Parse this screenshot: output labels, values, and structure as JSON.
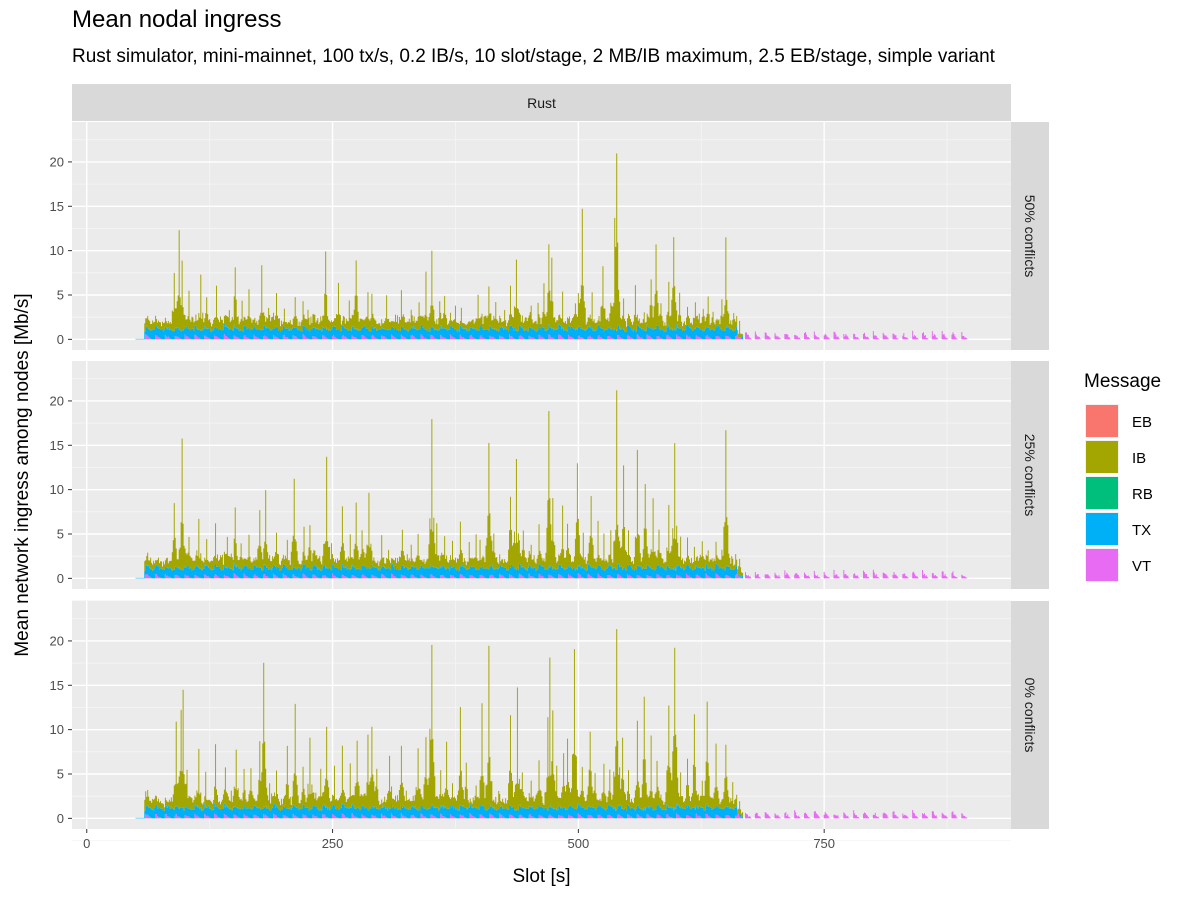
{
  "title": "Mean nodal ingress",
  "subtitle": "Rust simulator, mini-mainnet, 100 tx/s, 0.2 IB/s, 10 slot/stage, 2 MB/IB maximum, 2.5 EB/stage, simple variant",
  "chart_data": {
    "type": "area",
    "title": "Mean nodal ingress",
    "xlabel": "Slot [s]",
    "ylabel": "Mean network ingress among nodes [Mb/s]",
    "xlim": [
      -15,
      940
    ],
    "ylim": [
      -1.2,
      24.5
    ],
    "xticks": [
      0,
      250,
      500,
      750
    ],
    "yticks": [
      0,
      5,
      10,
      15,
      20
    ],
    "column_facet": "Rust",
    "row_facets": [
      "50% conflicts",
      "25% conflicts",
      "0% conflicts"
    ],
    "legend": {
      "title": "Message",
      "entries": [
        {
          "name": "EB",
          "color": "#F8766D"
        },
        {
          "name": "IB",
          "color": "#A3A500"
        },
        {
          "name": "RB",
          "color": "#00BF7D"
        },
        {
          "name": "TX",
          "color": "#00B0F6"
        },
        {
          "name": "VT",
          "color": "#E76BF3"
        }
      ]
    },
    "layer_order_bottom_to_top": [
      "VT",
      "TX",
      "RB",
      "IB",
      "EB"
    ],
    "panels": [
      {
        "label": "50% conflicts",
        "tx_level": 1.0,
        "ib_base": 1.7,
        "ib_peaks": [
          [
            89,
            7.5
          ],
          [
            94,
            12.2
          ],
          [
            97,
            8.8
          ],
          [
            104,
            5.3
          ],
          [
            116,
            7.3
          ],
          [
            122,
            4.5
          ],
          [
            132,
            5.8
          ],
          [
            145,
            3.2
          ],
          [
            151,
            7.8
          ],
          [
            158,
            4.3
          ],
          [
            165,
            5.3
          ],
          [
            178,
            8.2
          ],
          [
            185,
            3.3
          ],
          [
            193,
            4.8
          ],
          [
            201,
            3.0
          ],
          [
            212,
            4.4
          ],
          [
            220,
            3.7
          ],
          [
            225,
            3.3
          ],
          [
            243,
            9.5
          ],
          [
            256,
            6.2
          ],
          [
            267,
            4.2
          ],
          [
            274,
            8.8
          ],
          [
            286,
            5.1
          ],
          [
            290,
            4.6
          ],
          [
            305,
            4.8
          ],
          [
            320,
            5.0
          ],
          [
            330,
            3.0
          ],
          [
            338,
            4.0
          ],
          [
            345,
            7.5
          ],
          [
            351,
            9.5
          ],
          [
            359,
            4.1
          ],
          [
            364,
            4.6
          ],
          [
            375,
            3.6
          ],
          [
            381,
            3.1
          ],
          [
            398,
            5.0
          ],
          [
            409,
            6.0
          ],
          [
            416,
            4.0
          ],
          [
            425,
            3.0
          ],
          [
            431,
            5.5
          ],
          [
            437,
            9.0
          ],
          [
            452,
            3.5
          ],
          [
            459,
            4.0
          ],
          [
            465,
            6.0
          ],
          [
            470,
            10.0
          ],
          [
            473,
            9.0
          ],
          [
            484,
            5.0
          ],
          [
            497,
            4.0
          ],
          [
            500,
            4.8
          ],
          [
            504,
            14.5
          ],
          [
            514,
            5.0
          ],
          [
            525,
            8.0
          ],
          [
            533,
            4.0
          ],
          [
            537,
            13.5
          ],
          [
            539,
            21.0
          ],
          [
            546,
            4.5
          ],
          [
            558,
            6.0
          ],
          [
            567,
            3.0
          ],
          [
            574,
            6.5
          ],
          [
            579,
            10.5
          ],
          [
            584,
            4.0
          ],
          [
            592,
            6.0
          ],
          [
            597,
            11.5
          ],
          [
            603,
            5.0
          ],
          [
            611,
            3.0
          ],
          [
            619,
            4.0
          ],
          [
            627,
            3.5
          ],
          [
            632,
            4.5
          ],
          [
            637,
            3.0
          ],
          [
            646,
            4.5
          ],
          [
            650,
            11.2
          ],
          [
            658,
            3.0
          ],
          [
            664,
            2.5
          ]
        ]
      },
      {
        "label": "25% conflicts",
        "tx_level": 1.0,
        "ib_base": 1.7,
        "ib_peaks": [
          [
            62,
            2.5
          ],
          [
            89,
            8.5
          ],
          [
            97,
            15.8
          ],
          [
            104,
            4.5
          ],
          [
            114,
            6.5
          ],
          [
            122,
            4.0
          ],
          [
            131,
            5.5
          ],
          [
            143,
            4.5
          ],
          [
            151,
            7.5
          ],
          [
            157,
            4.0
          ],
          [
            165,
            4.8
          ],
          [
            176,
            7.5
          ],
          [
            182,
            9.5
          ],
          [
            193,
            5.0
          ],
          [
            204,
            4.0
          ],
          [
            211,
            11.0
          ],
          [
            221,
            5.2
          ],
          [
            227,
            6.0
          ],
          [
            244,
            13.5
          ],
          [
            249,
            4.0
          ],
          [
            260,
            7.5
          ],
          [
            268,
            5.0
          ],
          [
            274,
            8.5
          ],
          [
            280,
            5.0
          ],
          [
            287,
            9.5
          ],
          [
            300,
            4.5
          ],
          [
            307,
            3.0
          ],
          [
            321,
            5.0
          ],
          [
            330,
            3.5
          ],
          [
            337,
            5.0
          ],
          [
            351,
            17.6
          ],
          [
            356,
            6.0
          ],
          [
            364,
            4.5
          ],
          [
            372,
            4.0
          ],
          [
            380,
            6.0
          ],
          [
            389,
            4.0
          ],
          [
            396,
            5.0
          ],
          [
            400,
            4.0
          ],
          [
            409,
            15.2
          ],
          [
            414,
            5.0
          ],
          [
            431,
            9.0
          ],
          [
            437,
            13.5
          ],
          [
            444,
            5.0
          ],
          [
            452,
            3.5
          ],
          [
            460,
            5.5
          ],
          [
            470,
            18.4
          ],
          [
            474,
            9.0
          ],
          [
            484,
            8.0
          ],
          [
            489,
            6.0
          ],
          [
            499,
            13.0
          ],
          [
            505,
            5.0
          ],
          [
            513,
            9.0
          ],
          [
            520,
            6.0
          ],
          [
            526,
            5.0
          ],
          [
            533,
            5.0
          ],
          [
            539,
            21.2
          ],
          [
            546,
            12.5
          ],
          [
            551,
            5.0
          ],
          [
            560,
            14.0
          ],
          [
            568,
            10.5
          ],
          [
            576,
            9.0
          ],
          [
            582,
            5.0
          ],
          [
            592,
            8.0
          ],
          [
            598,
            15.0
          ],
          [
            604,
            4.5
          ],
          [
            611,
            4.0
          ],
          [
            618,
            3.5
          ],
          [
            626,
            4.0
          ],
          [
            632,
            3.0
          ],
          [
            640,
            3.5
          ],
          [
            646,
            3.0
          ],
          [
            650,
            16.4
          ],
          [
            656,
            2.5
          ],
          [
            664,
            3.0
          ]
        ]
      },
      {
        "label": "0% conflicts",
        "tx_level": 1.0,
        "ib_base": 1.7,
        "ib_peaks": [
          [
            62,
            2.8
          ],
          [
            91,
            10.5
          ],
          [
            96,
            12.0
          ],
          [
            98,
            14.3
          ],
          [
            102,
            5.0
          ],
          [
            114,
            7.5
          ],
          [
            121,
            5.0
          ],
          [
            131,
            8.0
          ],
          [
            141,
            5.5
          ],
          [
            147,
            3.0
          ],
          [
            152,
            7.5
          ],
          [
            160,
            5.0
          ],
          [
            167,
            5.5
          ],
          [
            176,
            8.5
          ],
          [
            180,
            17.2
          ],
          [
            186,
            4.0
          ],
          [
            193,
            5.0
          ],
          [
            204,
            8.0
          ],
          [
            212,
            12.5
          ],
          [
            220,
            5.2
          ],
          [
            227,
            9.0
          ],
          [
            238,
            5.5
          ],
          [
            244,
            10.0
          ],
          [
            252,
            5.5
          ],
          [
            260,
            7.5
          ],
          [
            268,
            6.0
          ],
          [
            275,
            8.5
          ],
          [
            286,
            9.5
          ],
          [
            290,
            10.0
          ],
          [
            295,
            5.5
          ],
          [
            308,
            7.0
          ],
          [
            320,
            7.5
          ],
          [
            325,
            3.0
          ],
          [
            337,
            8.0
          ],
          [
            345,
            9.0
          ],
          [
            349,
            10.0
          ],
          [
            351,
            19.0
          ],
          [
            360,
            5.0
          ],
          [
            366,
            8.5
          ],
          [
            372,
            3.5
          ],
          [
            380,
            12.0
          ],
          [
            386,
            6.0
          ],
          [
            396,
            3.5
          ],
          [
            402,
            12.5
          ],
          [
            409,
            19.3
          ],
          [
            419,
            3.0
          ],
          [
            431,
            11.2
          ],
          [
            438,
            14.6
          ],
          [
            443,
            5.0
          ],
          [
            452,
            4.0
          ],
          [
            460,
            6.0
          ],
          [
            469,
            11.5
          ],
          [
            471,
            17.5
          ],
          [
            474,
            12.0
          ],
          [
            478,
            6.0
          ],
          [
            485,
            7.0
          ],
          [
            489,
            9.0
          ],
          [
            496,
            19.0
          ],
          [
            504,
            5.5
          ],
          [
            512,
            9.5
          ],
          [
            517,
            5.0
          ],
          [
            526,
            6.0
          ],
          [
            532,
            5.0
          ],
          [
            539,
            21.3
          ],
          [
            545,
            9.0
          ],
          [
            551,
            5.0
          ],
          [
            560,
            10.5
          ],
          [
            567,
            13.5
          ],
          [
            574,
            9.0
          ],
          [
            580,
            6.0
          ],
          [
            592,
            12.5
          ],
          [
            598,
            19.0
          ],
          [
            604,
            5.0
          ],
          [
            611,
            6.5
          ],
          [
            618,
            11.5
          ],
          [
            626,
            4.0
          ],
          [
            631,
            12.5
          ],
          [
            640,
            8.0
          ],
          [
            650,
            8.0
          ],
          [
            657,
            4.0
          ],
          [
            664,
            2.5
          ]
        ]
      }
    ]
  }
}
